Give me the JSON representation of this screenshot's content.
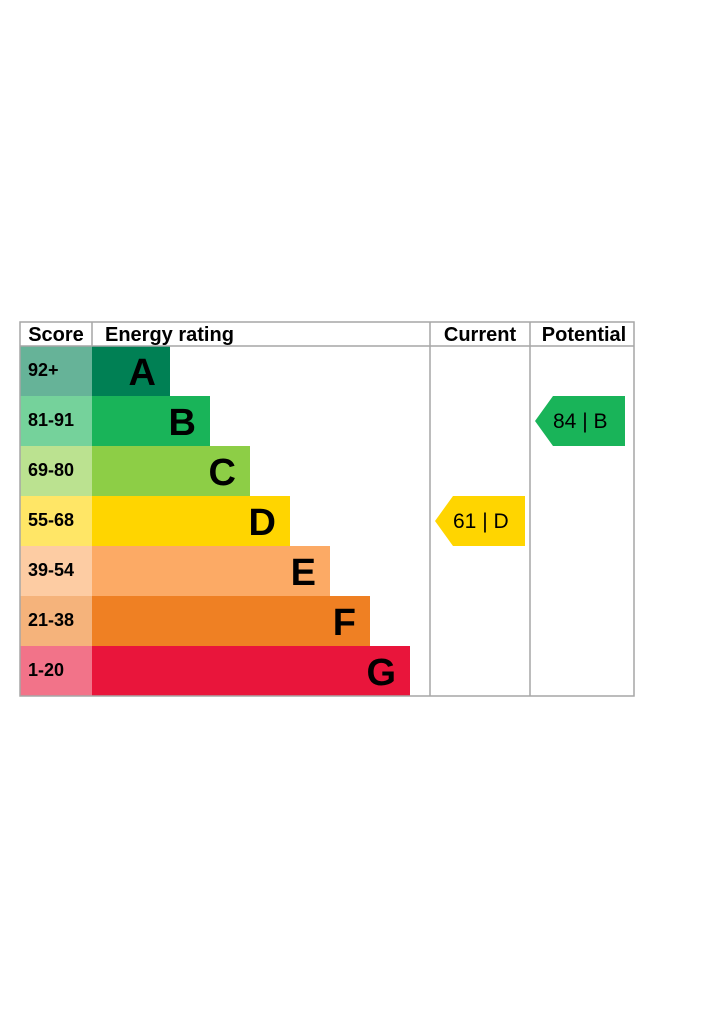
{
  "chart_data": {
    "type": "table",
    "headers": {
      "score": "Score",
      "rating": "Energy rating",
      "current": "Current",
      "potential": "Potential"
    },
    "bands": [
      {
        "letter": "A",
        "score": "92+",
        "color": "#008054",
        "score_bg": "#66b398"
      },
      {
        "letter": "B",
        "score": "81-91",
        "color": "#19b459",
        "score_bg": "#75d29b"
      },
      {
        "letter": "C",
        "score": "69-80",
        "color": "#8dce46",
        "score_bg": "#bbe290"
      },
      {
        "letter": "D",
        "score": "55-68",
        "color": "#ffd500",
        "score_bg": "#ffe666"
      },
      {
        "letter": "E",
        "score": "39-54",
        "color": "#fcaa65",
        "score_bg": "#fdcca3"
      },
      {
        "letter": "F",
        "score": "21-38",
        "color": "#ef8023",
        "score_bg": "#f5b37b"
      },
      {
        "letter": "G",
        "score": "1-20",
        "color": "#e9153b",
        "score_bg": "#f27389"
      }
    ],
    "current": {
      "value": 61,
      "letter": "D",
      "color": "#ffd500",
      "label": "61 |  D"
    },
    "potential": {
      "value": 84,
      "letter": "B",
      "color": "#19b459",
      "label": "84 |  B"
    }
  }
}
